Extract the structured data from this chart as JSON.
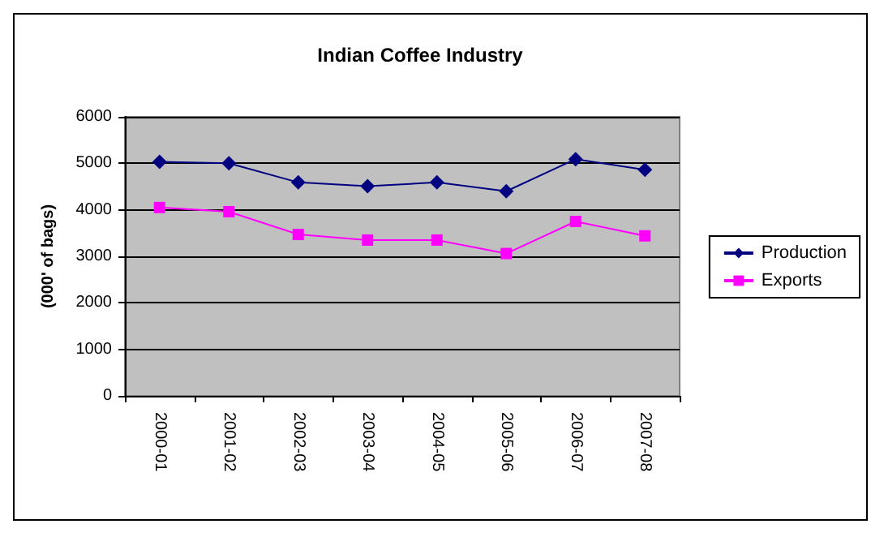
{
  "chart_data": {
    "type": "line",
    "title": "Indian Coffee Industry",
    "ylabel": "(000' of bags)",
    "categories": [
      "2000-01",
      "2001-02",
      "2002-03",
      "2003-04",
      "2004-05",
      "2005-06",
      "2006-07",
      "2007-08"
    ],
    "series": [
      {
        "name": "Production",
        "color": "#000080",
        "marker": "diamond",
        "values": [
          5030,
          5000,
          4590,
          4510,
          4590,
          4400,
          5090,
          4860
        ]
      },
      {
        "name": "Exports",
        "color": "#ff00ff",
        "marker": "square",
        "values": [
          4050,
          3960,
          3470,
          3350,
          3350,
          3060,
          3750,
          3440
        ]
      }
    ],
    "ylim": [
      0,
      6000
    ],
    "yticks": [
      0,
      1000,
      2000,
      3000,
      4000,
      5000,
      6000
    ],
    "grid": "y",
    "legend": "right"
  }
}
